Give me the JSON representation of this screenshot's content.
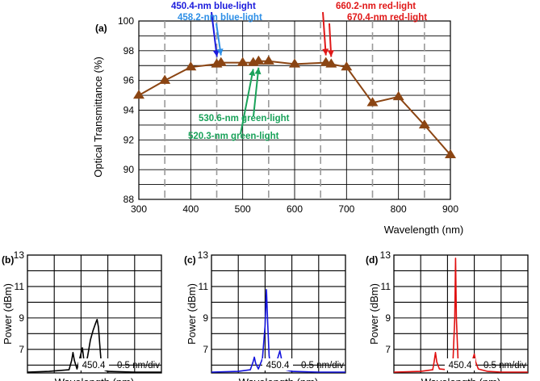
{
  "colors": {
    "main_series": "#8b4513",
    "blue_dark": "#1a1adc",
    "blue_light": "#2e8fe6",
    "green": "#1aa25a",
    "red": "#e01818",
    "trace_b": "#000000",
    "trace_c": "#1414dc",
    "trace_d": "#e01010"
  },
  "chart_data": [
    {
      "panel": "(a)",
      "type": "line",
      "xlabel": "Wavelength (nm)",
      "ylabel": "Optical Transmittance (%)",
      "xlim": [
        300,
        900
      ],
      "ylim": [
        88,
        100
      ],
      "xticks": [
        "300",
        "400",
        "500",
        "600",
        "700",
        "800",
        "900"
      ],
      "yticks": [
        "88",
        "90",
        "92",
        "94",
        "96",
        "98",
        "100"
      ],
      "grid": true,
      "marker": "triangle",
      "x": [
        300,
        350,
        400,
        450,
        458.2,
        500,
        520.3,
        530.6,
        550,
        600,
        660.2,
        670.4,
        700,
        750,
        800,
        850,
        900
      ],
      "y": [
        95.0,
        96.0,
        96.9,
        97.1,
        97.2,
        97.2,
        97.2,
        97.3,
        97.3,
        97.1,
        97.2,
        97.1,
        96.9,
        94.5,
        94.9,
        93.0,
        91.0
      ],
      "annotations": [
        {
          "text": "450.4-nm blue-light",
          "x": 450.4,
          "y": 97.1,
          "color": "#1a1adc"
        },
        {
          "text": "458.2-nm blue-light",
          "x": 458.2,
          "y": 97.2,
          "color": "#2e8fe6"
        },
        {
          "text": "520.3-nm green-light",
          "x": 520.3,
          "y": 97.2,
          "color": "#1aa25a"
        },
        {
          "text": "530.6-nm green-light",
          "x": 530.6,
          "y": 97.3,
          "color": "#1aa25a"
        },
        {
          "text": "660.2-nm red-light",
          "x": 660.2,
          "y": 97.2,
          "color": "#e01818"
        },
        {
          "text": "670.4-nm red-light",
          "x": 670.4,
          "y": 97.1,
          "color": "#e01818"
        }
      ]
    },
    {
      "panel": "(b)",
      "type": "line",
      "xlabel": "Wavelength (nm)",
      "ylabel": "Power (dBm)",
      "yticks": [
        "7",
        "9",
        "11",
        "13"
      ],
      "ylim": [
        5.5,
        13.0
      ],
      "x_center_label": "450.4",
      "x_scale_label": "0.5 nm/div",
      "grid": true,
      "color": "#000000",
      "x": [
        0,
        0.8,
        1.55,
        1.65,
        1.7,
        1.75,
        1.85,
        1.95,
        2.05,
        2.1,
        2.15,
        2.25,
        2.35,
        2.45,
        2.55,
        2.6,
        2.65,
        2.7,
        2.75,
        2.85,
        3.0,
        4,
        5
      ],
      "y": [
        5.55,
        5.6,
        5.7,
        6.3,
        6.8,
        6.3,
        5.75,
        6.4,
        7.1,
        6.4,
        5.75,
        6.6,
        7.6,
        8.2,
        8.7,
        8.9,
        8.4,
        7.3,
        6.2,
        5.7,
        5.6,
        5.55,
        5.55
      ]
    },
    {
      "panel": "(c)",
      "type": "line",
      "xlabel": "Wavelength (nm)",
      "ylabel": "Power (dBm)",
      "yticks": [
        "7",
        "9",
        "11",
        "13"
      ],
      "ylim": [
        5.5,
        13.0
      ],
      "x_center_label": "450.4",
      "x_scale_label": "0.5 nm/div",
      "grid": true,
      "color": "#1414dc",
      "x": [
        0,
        1.0,
        1.45,
        1.55,
        1.6,
        1.65,
        1.75,
        1.9,
        2.0,
        2.05,
        2.1,
        2.15,
        2.2,
        2.3,
        2.45,
        2.55,
        2.6,
        2.65,
        2.75,
        3.0,
        4,
        5
      ],
      "y": [
        5.55,
        5.6,
        5.7,
        6.2,
        6.5,
        6.1,
        5.75,
        6.4,
        8.5,
        10.8,
        8.6,
        6.6,
        6.0,
        5.8,
        6.3,
        6.9,
        6.5,
        6.0,
        5.7,
        5.6,
        5.55,
        5.55
      ]
    },
    {
      "panel": "(d)",
      "type": "line",
      "xlabel": "Wavelength (nm)",
      "ylabel": "Power (dBm)",
      "yticks": [
        "7",
        "9",
        "11",
        "13"
      ],
      "ylim": [
        5.5,
        13.0
      ],
      "x_center_label": "450.4",
      "x_scale_label": "0.5 nm/div",
      "grid": true,
      "color": "#e01010",
      "x": [
        0,
        1.0,
        1.45,
        1.5,
        1.55,
        1.6,
        1.7,
        2.0,
        2.2,
        2.27,
        2.3,
        2.33,
        2.4,
        2.6,
        2.9,
        2.95,
        3.0,
        3.05,
        3.15,
        3.5,
        4,
        5
      ],
      "y": [
        5.55,
        5.6,
        5.7,
        6.2,
        6.8,
        6.2,
        5.75,
        5.7,
        6.0,
        9.0,
        12.8,
        9.0,
        6.0,
        5.75,
        5.9,
        6.4,
        6.7,
        6.2,
        5.75,
        5.6,
        5.55,
        5.55
      ]
    }
  ]
}
